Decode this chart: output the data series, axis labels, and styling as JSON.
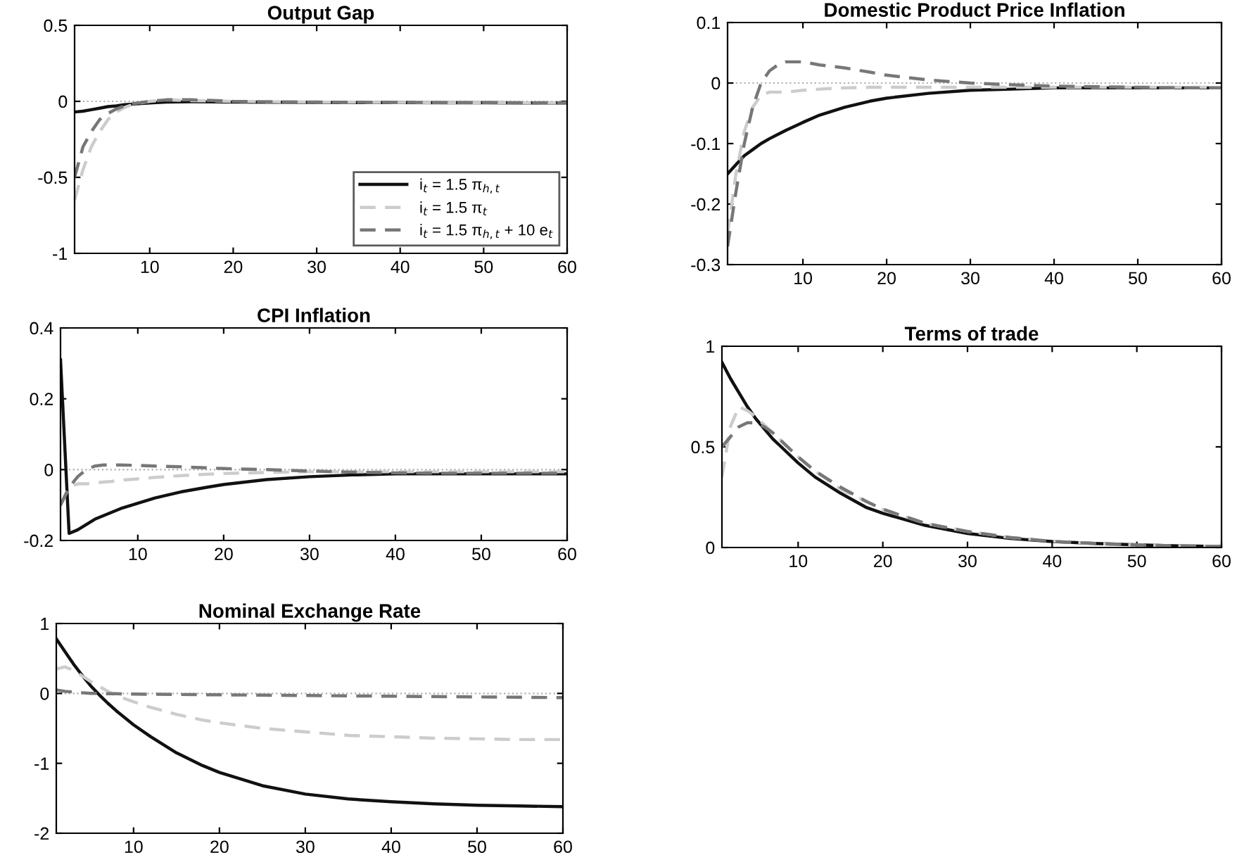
{
  "chart_data": [
    {
      "type": "line",
      "title": "Output Gap",
      "xlim": [
        1,
        60
      ],
      "xticks": [
        10,
        20,
        30,
        40,
        50,
        60
      ],
      "ylim": [
        -1,
        0.5
      ],
      "yticks": [
        -1,
        -0.5,
        0,
        0.5
      ],
      "legend": "lower right",
      "ref_lines": [
        {
          "axis": "y",
          "value": 0,
          "color": "#b0b0b0",
          "line_style": "dotted"
        }
      ],
      "x": [
        1,
        2,
        3,
        4,
        5,
        6,
        7,
        8,
        10,
        12,
        15,
        18,
        20,
        25,
        30,
        35,
        40,
        45,
        50,
        55,
        60
      ],
      "series": [
        {
          "name": "i$_{t}$ = 1.5 π$_{h,t}$",
          "color": "#111111",
          "line_style": "solid",
          "values": [
            -0.07,
            -0.065,
            -0.055,
            -0.045,
            -0.035,
            -0.03,
            -0.022,
            -0.018,
            -0.01,
            -0.005,
            -0.003,
            -0.004,
            -0.005,
            -0.006,
            -0.007,
            -0.008,
            -0.008,
            -0.009,
            -0.009,
            -0.01,
            -0.01
          ]
        },
        {
          "name": "i$_{t}$ = 1.5 π$_{t}$",
          "color": "#cccccc",
          "line_style": "dashed",
          "values": [
            -0.65,
            -0.45,
            -0.3,
            -0.2,
            -0.12,
            -0.07,
            -0.04,
            -0.02,
            0,
            0.01,
            0.005,
            0.002,
            0,
            -0.003,
            -0.005,
            -0.006,
            -0.007,
            -0.008,
            -0.008,
            -0.009,
            -0.009
          ]
        },
        {
          "name": "i$_{t}$ = 1.5 π$_{h,t}$ + 10 e$_{t}$",
          "color": "#777777",
          "line_style": "dashed",
          "values": [
            -0.5,
            -0.3,
            -0.2,
            -0.12,
            -0.08,
            -0.05,
            -0.03,
            -0.015,
            0,
            0.01,
            0.01,
            0.005,
            0,
            -0.003,
            -0.005,
            -0.006,
            -0.007,
            -0.008,
            -0.008,
            -0.009,
            -0.009
          ]
        }
      ]
    },
    {
      "type": "line",
      "title": "Domestic Product Price Inflation",
      "xlim": [
        1,
        60
      ],
      "xticks": [
        10,
        20,
        30,
        40,
        50,
        60
      ],
      "ylim": [
        -0.3,
        0.1
      ],
      "yticks": [
        -0.3,
        -0.2,
        -0.1,
        0,
        0.1
      ],
      "ref_lines": [
        {
          "axis": "y",
          "value": 0,
          "color": "#b0b0b0",
          "line_style": "dotted"
        }
      ],
      "x": [
        1,
        2,
        3,
        4,
        5,
        6,
        7,
        8,
        10,
        12,
        15,
        18,
        20,
        25,
        30,
        35,
        40,
        45,
        50,
        55,
        60
      ],
      "series": [
        {
          "color": "#111111",
          "line_style": "solid",
          "values": [
            -0.15,
            -0.135,
            -0.12,
            -0.11,
            -0.1,
            -0.092,
            -0.085,
            -0.078,
            -0.065,
            -0.053,
            -0.04,
            -0.03,
            -0.025,
            -0.017,
            -0.012,
            -0.01,
            -0.008,
            -0.008,
            -0.008,
            -0.008,
            -0.008
          ]
        },
        {
          "color": "#cccccc",
          "line_style": "dashed",
          "values": [
            -0.25,
            -0.15,
            -0.08,
            -0.04,
            -0.02,
            -0.015,
            -0.015,
            -0.015,
            -0.012,
            -0.01,
            -0.008,
            -0.007,
            -0.007,
            -0.007,
            -0.007,
            -0.007,
            -0.007,
            -0.007,
            -0.007,
            -0.007,
            -0.007
          ]
        },
        {
          "color": "#777777",
          "line_style": "dashed",
          "values": [
            -0.27,
            -0.18,
            -0.1,
            -0.04,
            0,
            0.02,
            0.03,
            0.035,
            0.035,
            0.03,
            0.025,
            0.018,
            0.013,
            0.005,
            0,
            -0.003,
            -0.005,
            -0.006,
            -0.007,
            -0.008,
            -0.008
          ]
        }
      ]
    },
    {
      "type": "line",
      "title": "CPI Inflation",
      "xlim": [
        1,
        60
      ],
      "xticks": [
        10,
        20,
        30,
        40,
        50,
        60
      ],
      "ylim": [
        -0.2,
        0.4
      ],
      "yticks": [
        -0.2,
        0,
        0.2,
        0.4
      ],
      "ref_lines": [
        {
          "axis": "y",
          "value": 0,
          "color": "#b0b0b0",
          "line_style": "dotted"
        }
      ],
      "x": [
        1,
        2,
        3,
        4,
        5,
        6,
        7,
        8,
        10,
        12,
        15,
        18,
        20,
        25,
        30,
        35,
        40,
        45,
        50,
        55,
        60
      ],
      "series": [
        {
          "color": "#111111",
          "line_style": "solid",
          "values": [
            0.31,
            -0.18,
            -0.17,
            -0.155,
            -0.14,
            -0.13,
            -0.12,
            -0.11,
            -0.095,
            -0.08,
            -0.063,
            -0.05,
            -0.042,
            -0.028,
            -0.02,
            -0.015,
            -0.012,
            -0.012,
            -0.012,
            -0.012,
            -0.012
          ]
        },
        {
          "color": "#cccccc",
          "line_style": "dashed",
          "values": [
            -0.1,
            -0.05,
            -0.04,
            -0.04,
            -0.038,
            -0.035,
            -0.033,
            -0.03,
            -0.026,
            -0.022,
            -0.017,
            -0.013,
            -0.011,
            -0.008,
            -0.006,
            -0.006,
            -0.006,
            -0.006,
            -0.006,
            -0.006,
            -0.006
          ]
        },
        {
          "color": "#777777",
          "line_style": "dashed",
          "values": [
            -0.1,
            -0.05,
            -0.02,
            0,
            0.01,
            0.013,
            0.013,
            0.013,
            0.012,
            0.01,
            0.008,
            0.005,
            0.003,
            0,
            -0.004,
            -0.007,
            -0.009,
            -0.01,
            -0.01,
            -0.01,
            -0.01
          ]
        }
      ]
    },
    {
      "type": "line",
      "title": "Terms of trade",
      "xlim": [
        1,
        60
      ],
      "xticks": [
        10,
        20,
        30,
        40,
        50,
        60
      ],
      "ylim": [
        0,
        1
      ],
      "yticks": [
        0,
        0.5,
        1
      ],
      "x": [
        1,
        2,
        3,
        4,
        5,
        6,
        7,
        8,
        10,
        12,
        15,
        18,
        20,
        25,
        30,
        35,
        40,
        45,
        50,
        55,
        60
      ],
      "series": [
        {
          "color": "#111111",
          "line_style": "solid",
          "values": [
            0.92,
            0.84,
            0.77,
            0.7,
            0.64,
            0.59,
            0.54,
            0.5,
            0.42,
            0.35,
            0.27,
            0.2,
            0.17,
            0.11,
            0.07,
            0.045,
            0.03,
            0.02,
            0.013,
            0.008,
            0.005
          ]
        },
        {
          "color": "#cccccc",
          "line_style": "dashed",
          "values": [
            0.35,
            0.6,
            0.7,
            0.68,
            0.65,
            0.61,
            0.57,
            0.53,
            0.45,
            0.38,
            0.29,
            0.23,
            0.19,
            0.12,
            0.08,
            0.05,
            0.032,
            0.02,
            0.013,
            0.008,
            0.005
          ]
        },
        {
          "color": "#777777",
          "line_style": "dashed",
          "values": [
            0.5,
            0.55,
            0.6,
            0.62,
            0.62,
            0.6,
            0.57,
            0.53,
            0.45,
            0.38,
            0.3,
            0.23,
            0.19,
            0.12,
            0.08,
            0.05,
            0.03,
            0.02,
            0.013,
            0.008,
            0.005
          ]
        }
      ]
    },
    {
      "type": "line",
      "title": "Nominal Exchange Rate",
      "xlim": [
        1,
        60
      ],
      "xticks": [
        10,
        20,
        30,
        40,
        50,
        60
      ],
      "ylim": [
        -2,
        1
      ],
      "yticks": [
        -2,
        -1,
        0,
        1
      ],
      "ref_lines": [
        {
          "axis": "y",
          "value": 0,
          "color": "#b0b0b0",
          "line_style": "dotted"
        }
      ],
      "x": [
        1,
        2,
        3,
        4,
        5,
        6,
        7,
        8,
        10,
        12,
        15,
        18,
        20,
        25,
        30,
        35,
        40,
        45,
        50,
        55,
        60
      ],
      "series": [
        {
          "color": "#111111",
          "line_style": "solid",
          "values": [
            0.78,
            0.6,
            0.42,
            0.26,
            0.11,
            -0.02,
            -0.14,
            -0.25,
            -0.45,
            -0.62,
            -0.85,
            -1.03,
            -1.13,
            -1.32,
            -1.44,
            -1.51,
            -1.55,
            -1.58,
            -1.6,
            -1.61,
            -1.62
          ]
        },
        {
          "color": "#cccccc",
          "line_style": "dashed",
          "values": [
            0.35,
            0.38,
            0.33,
            0.25,
            0.17,
            0.1,
            0.03,
            -0.03,
            -0.12,
            -0.2,
            -0.3,
            -0.38,
            -0.42,
            -0.5,
            -0.55,
            -0.6,
            -0.62,
            -0.64,
            -0.65,
            -0.66,
            -0.66
          ]
        },
        {
          "color": "#777777",
          "line_style": "dashed",
          "values": [
            0.05,
            0.03,
            0.02,
            0.01,
            0,
            0,
            -0.005,
            -0.005,
            -0.01,
            -0.012,
            -0.015,
            -0.018,
            -0.02,
            -0.025,
            -0.03,
            -0.035,
            -0.04,
            -0.045,
            -0.05,
            -0.055,
            -0.06
          ]
        }
      ]
    }
  ]
}
